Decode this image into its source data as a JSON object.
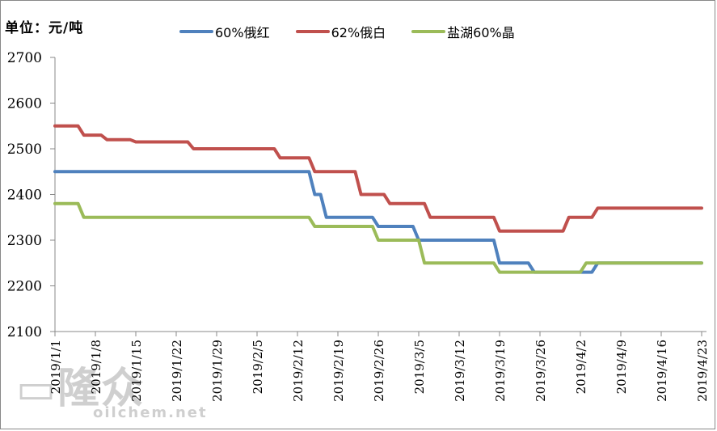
{
  "chart_data": {
    "type": "line",
    "title": "",
    "unit_label": "单位：元/吨",
    "xlabel": "",
    "ylabel": "元/吨",
    "ylim": [
      2100,
      2700
    ],
    "yticks": [
      2100,
      2200,
      2300,
      2400,
      2500,
      2600,
      2700
    ],
    "xticks": [
      "2019/1/1",
      "2019/1/8",
      "2019/1/15",
      "2019/1/22",
      "2019/1/29",
      "2019/2/5",
      "2019/2/12",
      "2019/2/19",
      "2019/2/26",
      "2019/3/5",
      "2019/3/12",
      "2019/3/19",
      "2019/3/26",
      "2019/4/2",
      "2019/4/9",
      "2019/4/16",
      "2019/4/23"
    ],
    "grid": false,
    "legend_position": "top",
    "x_day_range": [
      0,
      112
    ],
    "series": [
      {
        "name": "60%俄红",
        "color": "#4F81BD",
        "points": [
          [
            0,
            2450
          ],
          [
            44,
            2450
          ],
          [
            45,
            2400
          ],
          [
            46,
            2400
          ],
          [
            47,
            2350
          ],
          [
            55,
            2350
          ],
          [
            56,
            2330
          ],
          [
            62,
            2330
          ],
          [
            63,
            2300
          ],
          [
            76,
            2300
          ],
          [
            77,
            2250
          ],
          [
            82,
            2250
          ],
          [
            83,
            2230
          ],
          [
            93,
            2230
          ],
          [
            94,
            2250
          ],
          [
            112,
            2250
          ]
        ]
      },
      {
        "name": "62%俄白",
        "color": "#C0504D",
        "points": [
          [
            0,
            2550
          ],
          [
            4,
            2550
          ],
          [
            5,
            2530
          ],
          [
            8,
            2530
          ],
          [
            9,
            2520
          ],
          [
            13,
            2520
          ],
          [
            14,
            2515
          ],
          [
            23,
            2515
          ],
          [
            24,
            2500
          ],
          [
            38,
            2500
          ],
          [
            39,
            2480
          ],
          [
            44,
            2480
          ],
          [
            45,
            2450
          ],
          [
            52,
            2450
          ],
          [
            53,
            2400
          ],
          [
            57,
            2400
          ],
          [
            58,
            2380
          ],
          [
            64,
            2380
          ],
          [
            65,
            2350
          ],
          [
            76,
            2350
          ],
          [
            77,
            2320
          ],
          [
            88,
            2320
          ],
          [
            89,
            2350
          ],
          [
            93,
            2350
          ],
          [
            94,
            2370
          ],
          [
            112,
            2370
          ]
        ]
      },
      {
        "name": "盐湖60%晶",
        "color": "#9BBB59",
        "points": [
          [
            0,
            2380
          ],
          [
            4,
            2380
          ],
          [
            5,
            2350
          ],
          [
            44,
            2350
          ],
          [
            45,
            2330
          ],
          [
            55,
            2330
          ],
          [
            56,
            2300
          ],
          [
            63,
            2300
          ],
          [
            64,
            2250
          ],
          [
            76,
            2250
          ],
          [
            77,
            2230
          ],
          [
            91,
            2230
          ],
          [
            92,
            2250
          ],
          [
            112,
            2250
          ]
        ]
      }
    ]
  },
  "watermark": {
    "logo": "隆众",
    "url": "oilchem.net"
  }
}
